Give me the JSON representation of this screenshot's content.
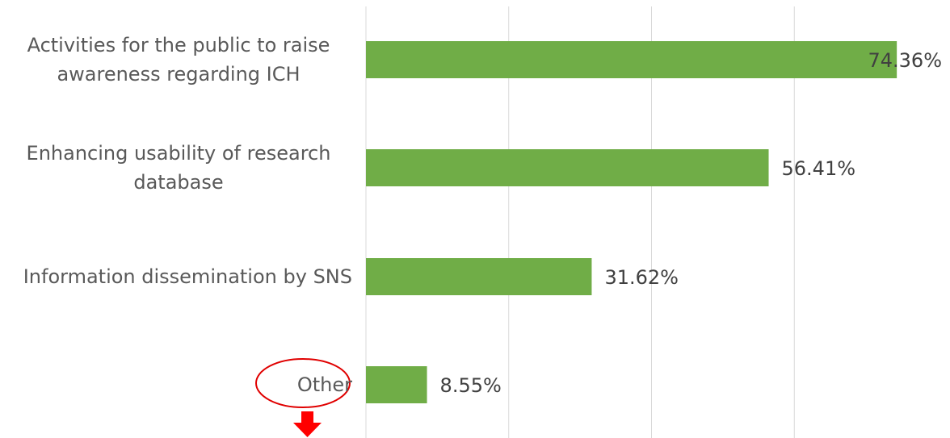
{
  "chart_data": {
    "type": "bar",
    "orientation": "horizontal",
    "categories": [
      "Activities for the public to raise awareness regarding ICH",
      "Enhancing usability of research database",
      "Information dissemination by SNS",
      "Other"
    ],
    "values": [
      74.36,
      56.41,
      31.62,
      8.55
    ],
    "value_labels": [
      "74.36%",
      "56.41%",
      "31.62%",
      "8.55%"
    ],
    "color": "#70ad47",
    "xlim": [
      0,
      80
    ],
    "xticks": [
      0,
      20,
      40,
      60
    ],
    "grid": true
  }
}
